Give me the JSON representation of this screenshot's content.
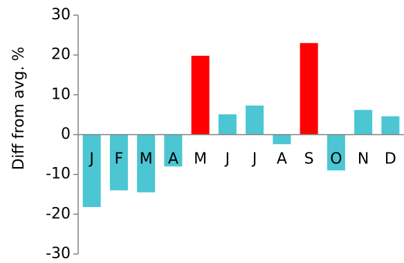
{
  "chart_data": {
    "type": "bar",
    "title": "",
    "xlabel": "",
    "ylabel": "Diff from avg. %",
    "ylim": [
      -30,
      30
    ],
    "yticks": [
      30,
      20,
      10,
      0,
      -10,
      -20,
      -30
    ],
    "categories": [
      "J",
      "F",
      "M",
      "A",
      "M",
      "J",
      "J",
      "A",
      "S",
      "O",
      "N",
      "D"
    ],
    "values": [
      -18.2,
      -14.0,
      -14.5,
      -8.0,
      19.8,
      5.1,
      7.3,
      -2.4,
      23.0,
      -9.0,
      6.2,
      4.6
    ],
    "colors": {
      "positive_highlight": "#ff0000",
      "default": "#4bc6d2"
    },
    "highlighted": [
      false,
      false,
      false,
      false,
      true,
      false,
      false,
      false,
      true,
      false,
      false,
      false
    ],
    "grid": false,
    "legend": "none"
  }
}
